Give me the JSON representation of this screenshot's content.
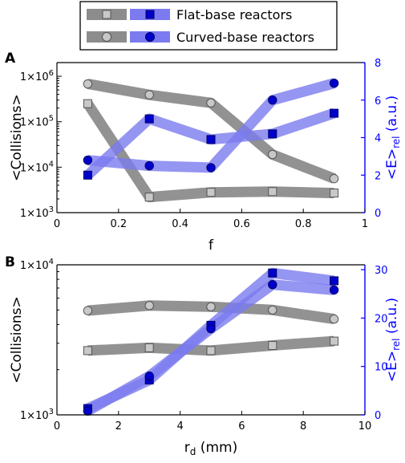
{
  "colors": {
    "gray": "#8c8c8c",
    "gray_marker_fill": "#c8c8c8",
    "blue": "#3333cc",
    "blue_band": "#7b7bef",
    "blue_marker": "#0000cc",
    "right_axis": "#0000ff"
  },
  "legend": {
    "flat_gray_icon": "gray-square-marker",
    "flat_blue_icon": "blue-square-marker",
    "curved_gray_icon": "gray-circle-marker",
    "curved_blue_icon": "blue-circle-marker",
    "flat_label": "Flat-base reactors",
    "curved_label": "Curved-base reactors"
  },
  "chart_data": [
    {
      "panel": "A",
      "type": "line",
      "xlabel": "f",
      "ylabel_left": "<Collisions>",
      "ylabel_right": "<E>rel (a.u.)",
      "xlim": [
        0,
        1
      ],
      "ylim_left": [
        1000,
        2000000
      ],
      "ylim_right": [
        0,
        8
      ],
      "y_left_scale": "log",
      "x_ticks": [
        "0",
        "0.2",
        "0.4",
        "0.6",
        "0.8",
        "1"
      ],
      "y_left_ticks": [
        "1×10³",
        "1×10⁴",
        "1×10⁵",
        "1×10⁶"
      ],
      "y_right_ticks": [
        "0",
        "2",
        "4",
        "6",
        "8"
      ],
      "x": [
        0.1,
        0.3,
        0.5,
        0.7,
        0.9
      ],
      "series": [
        {
          "name": "Flat-base reactors",
          "axis": "left",
          "marker": "square",
          "values": [
            250000,
            2200,
            2800,
            2900,
            2700
          ]
        },
        {
          "name": "Curved-base reactors",
          "axis": "left",
          "marker": "circle",
          "values": [
            680000,
            390000,
            260000,
            19000,
            5600
          ]
        },
        {
          "name": "Flat-base reactors",
          "axis": "right",
          "marker": "square",
          "values": [
            2.0,
            5.0,
            3.9,
            4.2,
            5.3
          ]
        },
        {
          "name": "Curved-base reactors",
          "axis": "right",
          "marker": "circle",
          "values": [
            2.8,
            2.5,
            2.4,
            6.0,
            6.9
          ]
        }
      ]
    },
    {
      "panel": "B",
      "type": "line",
      "xlabel": "rd (mm)",
      "ylabel_left": "<Collisions>",
      "ylabel_right": "<E>rel (a.u.)",
      "xlim": [
        0,
        10
      ],
      "ylim_left": [
        1000,
        10000
      ],
      "ylim_right": [
        0,
        31
      ],
      "y_left_scale": "log",
      "x_ticks": [
        "0",
        "2",
        "4",
        "6",
        "8",
        "10"
      ],
      "y_left_ticks": [
        "1×10³",
        "1×10⁴"
      ],
      "y_right_ticks": [
        "0",
        "10",
        "20",
        "30"
      ],
      "x": [
        1,
        3,
        5,
        7,
        9
      ],
      "series": [
        {
          "name": "Flat-base reactors",
          "axis": "left",
          "marker": "square",
          "values": [
            2680,
            2800,
            2680,
            2900,
            3100
          ]
        },
        {
          "name": "Curved-base reactors",
          "axis": "left",
          "marker": "circle",
          "values": [
            4950,
            5350,
            5250,
            5000,
            4350
          ]
        },
        {
          "name": "Flat-base reactors",
          "axis": "right",
          "marker": "square",
          "values": [
            1.3,
            7.2,
            18.5,
            29.3,
            27.7
          ]
        },
        {
          "name": "Curved-base reactors",
          "axis": "right",
          "marker": "circle",
          "values": [
            0.8,
            8.0,
            17.8,
            26.9,
            25.8
          ]
        }
      ]
    }
  ]
}
